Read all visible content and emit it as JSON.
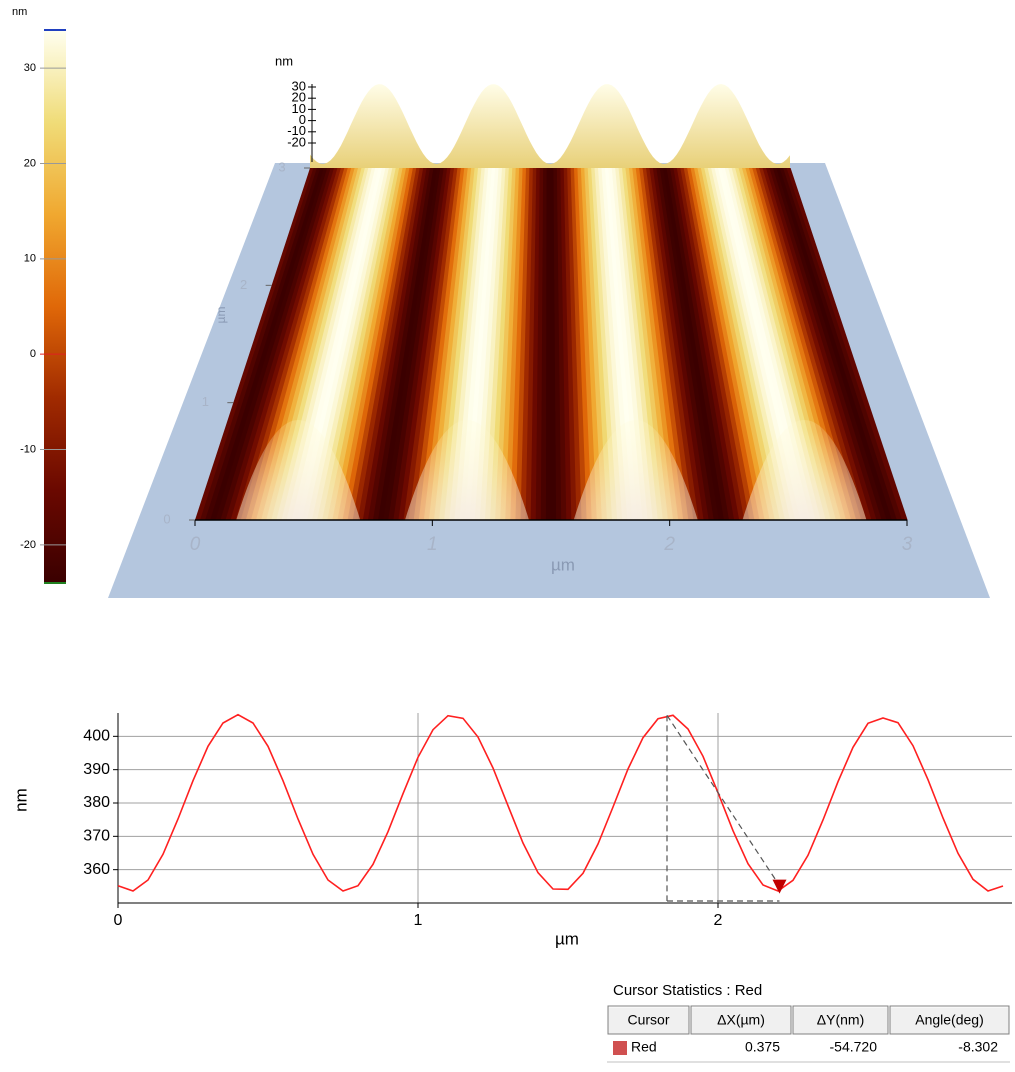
{
  "chart_data": [
    {
      "type": "colorbar",
      "unit": "nm",
      "ylim": [
        -24,
        34
      ],
      "yticks": [
        -20,
        -10,
        0,
        10,
        20,
        30
      ],
      "colors": [
        "#3a0000",
        "#6a0800",
        "#a02a00",
        "#e06808",
        "#f0a830",
        "#f0dc78",
        "#fffff0"
      ]
    },
    {
      "type": "surface3d",
      "z_label": "nm",
      "zticks": [
        -20,
        -10,
        0,
        10,
        20,
        30
      ],
      "x_label": "µm",
      "xticks": [
        0,
        1,
        2,
        3
      ],
      "y_label": "µm",
      "yticks": [
        0,
        1,
        2,
        3
      ]
    },
    {
      "type": "line",
      "x_label": "µm",
      "y_label": "nm",
      "xlim": [
        0,
        2.98
      ],
      "ylim": [
        350,
        407
      ],
      "xticks": [
        0,
        1,
        2
      ],
      "yticks": [
        360,
        370,
        380,
        390,
        400
      ],
      "grid": true,
      "color": "#ff2020",
      "x": [
        0,
        0.05,
        0.1,
        0.15,
        0.2,
        0.25,
        0.3,
        0.35,
        0.4,
        0.45,
        0.5,
        0.55,
        0.6,
        0.65,
        0.7,
        0.75,
        0.8,
        0.85,
        0.9,
        0.95,
        1,
        1.05,
        1.1,
        1.15,
        1.2,
        1.25,
        1.3,
        1.35,
        1.4,
        1.45,
        1.5,
        1.55,
        1.6,
        1.65,
        1.7,
        1.75,
        1.8,
        1.85,
        1.9,
        1.95,
        2,
        2.05,
        2.1,
        2.15,
        2.2,
        2.25,
        2.3,
        2.35,
        2.4,
        2.45,
        2.5,
        2.55,
        2.6,
        2.65,
        2.7,
        2.75,
        2.8,
        2.85,
        2.9,
        2.95
      ],
      "values": [
        355.2,
        353.6,
        356.9,
        364.6,
        375.2,
        386.7,
        397.0,
        404.0,
        406.5,
        404.0,
        397.0,
        386.7,
        375.2,
        364.6,
        356.9,
        353.6,
        355.2,
        361.6,
        371.4,
        382.8,
        393.7,
        402.0,
        406.2,
        405.4,
        399.8,
        390.5,
        379.2,
        368.0,
        359.1,
        354.2,
        354.1,
        358.9,
        367.7,
        378.8,
        390.2,
        399.6,
        405.3,
        406.3,
        402.2,
        394.0,
        383.1,
        371.7,
        361.8,
        355.4,
        353.6,
        356.8,
        364.3,
        374.9,
        386.4,
        396.7,
        403.9,
        405.5,
        404.1,
        397.2,
        387.0,
        375.5,
        364.9,
        357.1,
        353.6,
        355.1
      ],
      "cursor": {
        "x": [
          1.83,
          2.205
        ],
        "y": [
          406.3,
          351.6
        ],
        "color": "#c00000"
      }
    }
  ],
  "cursor_statistics": {
    "title": "Cursor Statistics : Red",
    "columns": [
      "Cursor",
      "ΔX(µm)",
      "ΔY(nm)",
      "Angle(deg)"
    ],
    "rows": [
      [
        "Red",
        "0.375",
        "-54.720",
        "-8.302"
      ]
    ],
    "swatch": "#d05050"
  }
}
